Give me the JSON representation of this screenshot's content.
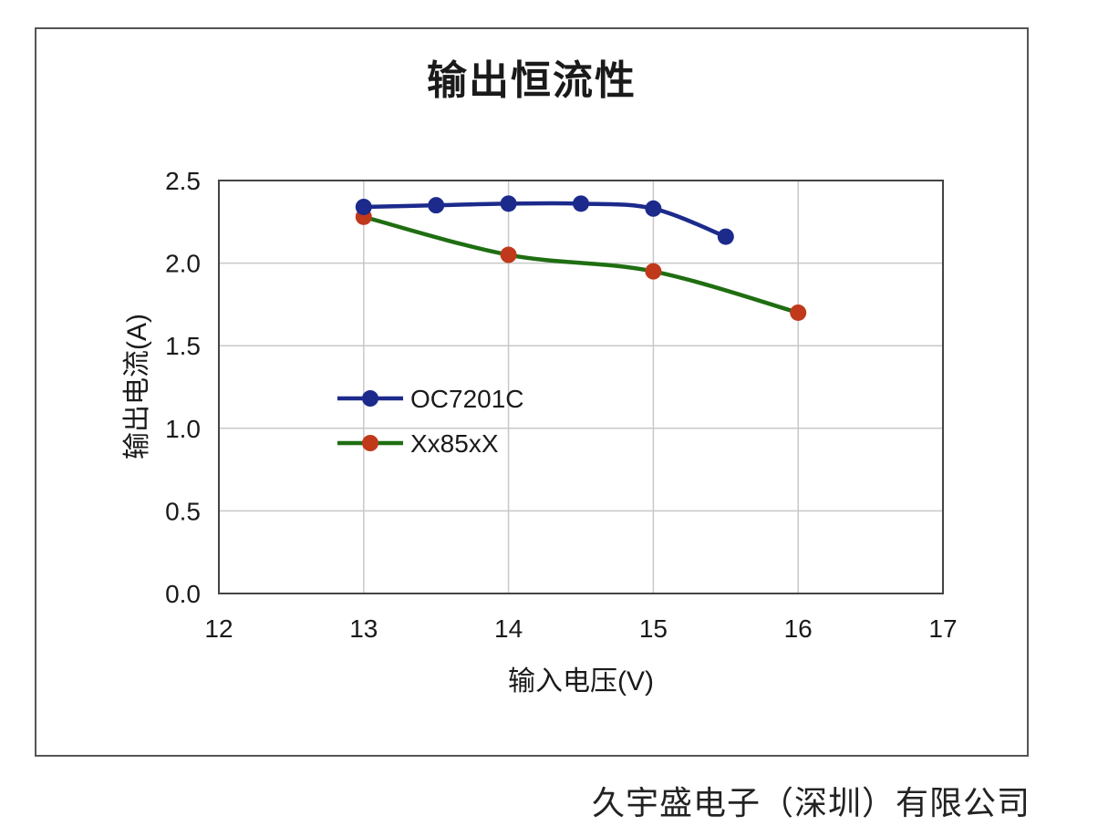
{
  "chart_data": {
    "type": "line",
    "title": "输出恒流性",
    "xlabel": "输入电压(V)",
    "ylabel": "输出电流(A)",
    "xlim": [
      12,
      17
    ],
    "ylim": [
      0.0,
      2.5
    ],
    "x_ticks": [
      "12",
      "13",
      "14",
      "15",
      "16",
      "17"
    ],
    "y_ticks": [
      "0.0",
      "0.5",
      "1.0",
      "1.5",
      "2.0",
      "2.5"
    ],
    "grid": true,
    "legend_position": "left-middle",
    "series": [
      {
        "name": "OC7201C",
        "color": "#1c2a8c",
        "marker_color": "#1c2a8c",
        "x": [
          13.0,
          13.5,
          14.0,
          14.5,
          15.0,
          15.5
        ],
        "y": [
          2.34,
          2.35,
          2.36,
          2.36,
          2.33,
          2.16
        ]
      },
      {
        "name": "Xx85xX",
        "color": "#1f6e12",
        "marker_color": "#c0391b",
        "x": [
          13.0,
          14.0,
          15.0,
          16.0
        ],
        "y": [
          2.28,
          2.05,
          1.95,
          1.7
        ]
      }
    ]
  },
  "footer": {
    "company": "久宇盛电子（深圳）有限公司"
  }
}
